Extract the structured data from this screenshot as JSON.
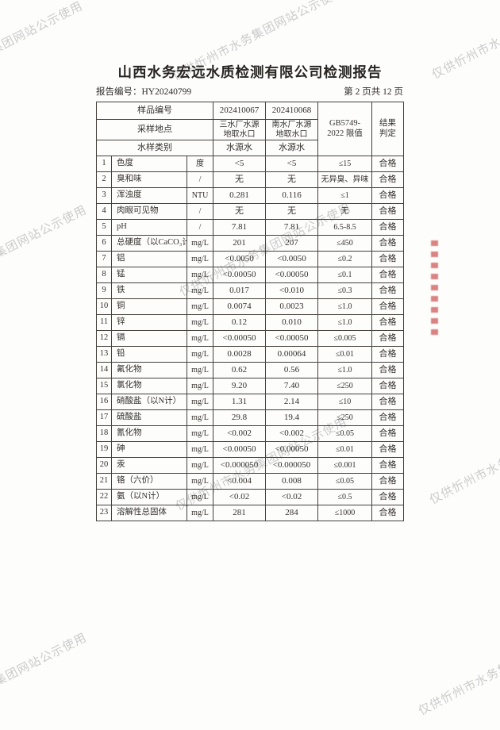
{
  "page": {
    "title": "山西水务宏远水质检测有限公司检测报告",
    "report_no_label": "报告编号：",
    "report_no": "HY20240799",
    "page_info": "第 2 页共 12 页"
  },
  "watermark": {
    "text": "仅供忻州市水务集团网站公示使用",
    "color": "#c6c6c6"
  },
  "seal": {
    "color": "#c33939"
  },
  "table": {
    "header": {
      "sample_no_label": "样品编号",
      "sample_no_1": "202410067",
      "sample_no_2": "202410068",
      "site_label": "采样地点",
      "site_1": "三水厂水源\n地取水口",
      "site_2": "南水厂水源\n地取水口",
      "category_label": "水样类别",
      "category_1": "水源水",
      "category_2": "水源水",
      "limit_label": "GB5749-\n2022 限值",
      "result_label": "结果\n判定"
    },
    "rows": [
      {
        "no": "1",
        "item": "色度",
        "unit": "度",
        "v1": "<5",
        "v2": "<5",
        "limit": "≤15",
        "result": "合格"
      },
      {
        "no": "2",
        "item": "臭和味",
        "unit": "/",
        "v1": "无",
        "v2": "无",
        "limit": "无异臭、异味",
        "result": "合格"
      },
      {
        "no": "3",
        "item": "浑浊度",
        "unit": "NTU",
        "v1": "0.281",
        "v2": "0.116",
        "limit": "≤1",
        "result": "合格"
      },
      {
        "no": "4",
        "item": "肉眼可见物",
        "unit": "/",
        "v1": "无",
        "v2": "无",
        "limit": "无",
        "result": "合格"
      },
      {
        "no": "5",
        "item": "pH",
        "unit": "/",
        "v1": "7.81",
        "v2": "7.81",
        "limit": "6.5-8.5",
        "result": "合格"
      },
      {
        "no": "6",
        "item": "总硬度（以CaCO₃计）",
        "unit": "mg/L",
        "v1": "201",
        "v2": "207",
        "limit": "≤450",
        "result": "合格"
      },
      {
        "no": "7",
        "item": "铝",
        "unit": "mg/L",
        "v1": "<0.0050",
        "v2": "<0.0050",
        "limit": "≤0.2",
        "result": "合格"
      },
      {
        "no": "8",
        "item": "锰",
        "unit": "mg/L",
        "v1": "<0.00050",
        "v2": "<0.00050",
        "limit": "≤0.1",
        "result": "合格"
      },
      {
        "no": "9",
        "item": "铁",
        "unit": "mg/L",
        "v1": "0.017",
        "v2": "<0.010",
        "limit": "≤0.3",
        "result": "合格"
      },
      {
        "no": "10",
        "item": "铜",
        "unit": "mg/L",
        "v1": "0.0074",
        "v2": "0.0023",
        "limit": "≤1.0",
        "result": "合格"
      },
      {
        "no": "11",
        "item": "锌",
        "unit": "mg/L",
        "v1": "0.12",
        "v2": "0.010",
        "limit": "≤1.0",
        "result": "合格"
      },
      {
        "no": "12",
        "item": "镉",
        "unit": "mg/L",
        "v1": "<0.00050",
        "v2": "<0.00050",
        "limit": "≤0.005",
        "result": "合格"
      },
      {
        "no": "13",
        "item": "铅",
        "unit": "mg/L",
        "v1": "0.0028",
        "v2": "0.00064",
        "limit": "≤0.01",
        "result": "合格"
      },
      {
        "no": "14",
        "item": "氟化物",
        "unit": "mg/L",
        "v1": "0.62",
        "v2": "0.56",
        "limit": "≤1.0",
        "result": "合格"
      },
      {
        "no": "15",
        "item": "氯化物",
        "unit": "mg/L",
        "v1": "9.20",
        "v2": "7.40",
        "limit": "≤250",
        "result": "合格"
      },
      {
        "no": "16",
        "item": "硝酸盐（以N计）",
        "unit": "mg/L",
        "v1": "1.31",
        "v2": "2.14",
        "limit": "≤10",
        "result": "合格"
      },
      {
        "no": "17",
        "item": "硫酸盐",
        "unit": "mg/L",
        "v1": "29.8",
        "v2": "19.4",
        "limit": "≤250",
        "result": "合格"
      },
      {
        "no": "18",
        "item": "氰化物",
        "unit": "mg/L",
        "v1": "<0.002",
        "v2": "<0.002",
        "limit": "≤0.05",
        "result": "合格"
      },
      {
        "no": "19",
        "item": "砷",
        "unit": "mg/L",
        "v1": "<0.00050",
        "v2": "<0.00050",
        "limit": "≤0.01",
        "result": "合格"
      },
      {
        "no": "20",
        "item": "汞",
        "unit": "mg/L",
        "v1": "<0.000050",
        "v2": "<0.000050",
        "limit": "≤0.001",
        "result": "合格"
      },
      {
        "no": "21",
        "item": "铬（六价）",
        "unit": "mg/L",
        "v1": "<0.004",
        "v2": "0.008",
        "limit": "≤0.05",
        "result": "合格"
      },
      {
        "no": "22",
        "item": "氨（以N计）",
        "unit": "mg/L",
        "v1": "<0.02",
        "v2": "<0.02",
        "limit": "≤0.5",
        "result": "合格"
      },
      {
        "no": "23",
        "item": "溶解性总固体",
        "unit": "mg/L",
        "v1": "281",
        "v2": "284",
        "limit": "≤1000",
        "result": "合格"
      }
    ]
  }
}
